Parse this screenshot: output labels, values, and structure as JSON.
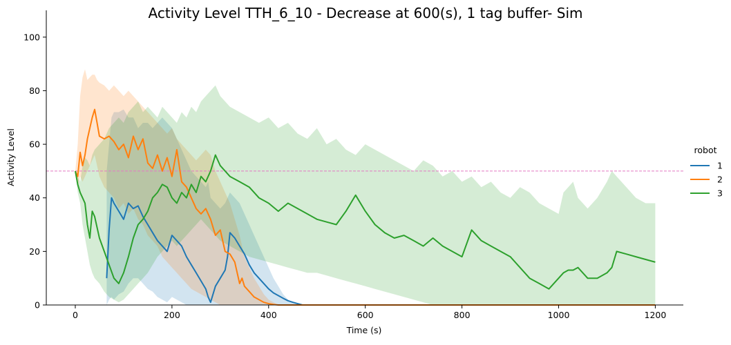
{
  "chart_data": {
    "type": "line",
    "title": "Activity Level TTH_6_10 - Decrease at 600(s), 1 tag buffer- Sim",
    "xlabel": "Time (s)",
    "ylabel": "Activity Level",
    "xlim": [
      -60,
      1258
    ],
    "ylim": [
      0,
      110
    ],
    "xticks": [
      0,
      200,
      400,
      600,
      800,
      1000,
      1200
    ],
    "yticks": [
      0,
      20,
      40,
      60,
      80,
      100
    ],
    "reference_line": {
      "y": 50,
      "style": "dashed",
      "color": "#e377c2"
    },
    "legend": {
      "title": "robot",
      "position": "right"
    },
    "series": [
      {
        "name": "1",
        "color": "#1f77b4",
        "x": [
          65,
          70,
          75,
          80,
          90,
          100,
          110,
          120,
          130,
          140,
          150,
          160,
          170,
          180,
          190,
          200,
          210,
          220,
          230,
          240,
          250,
          260,
          270,
          275,
          280,
          290,
          300,
          310,
          315,
          320,
          330,
          340,
          350,
          360,
          370,
          380,
          390,
          400,
          410,
          420,
          430,
          440,
          450,
          460,
          470
        ],
        "y": [
          10,
          28,
          40,
          38,
          35,
          32,
          38,
          36,
          37,
          33,
          30,
          27,
          24,
          22,
          20,
          26,
          24,
          22,
          18,
          15,
          12,
          9,
          6,
          3,
          1,
          7,
          10,
          13,
          18,
          27,
          25,
          22,
          19,
          15,
          12,
          10,
          8,
          6,
          4.5,
          3.5,
          2.5,
          1.6,
          1,
          0.5,
          0
        ],
        "upper": [
          50,
          60,
          70,
          72,
          72,
          73,
          70,
          70,
          66,
          68,
          68,
          66,
          68,
          70,
          68,
          66,
          62,
          58,
          54,
          50,
          48,
          46,
          44,
          46,
          40,
          38,
          36,
          38,
          40,
          42,
          40,
          38,
          34,
          30,
          26,
          22,
          18,
          14,
          10,
          7,
          4,
          2,
          1,
          0.5,
          0
        ],
        "lower": [
          0,
          2,
          3,
          2,
          4,
          5,
          8,
          10,
          10,
          8,
          6,
          5,
          3,
          2,
          1,
          3,
          2,
          1,
          0,
          0,
          0,
          0,
          0,
          0,
          0,
          0,
          0,
          0,
          0,
          0,
          0,
          0,
          0,
          0,
          0,
          0,
          0,
          0,
          0,
          0,
          0,
          0,
          0,
          0,
          0
        ]
      },
      {
        "name": "2",
        "color": "#ff7f0e",
        "x": [
          0,
          5,
          10,
          15,
          20,
          25,
          30,
          35,
          40,
          45,
          50,
          60,
          70,
          80,
          90,
          100,
          110,
          120,
          130,
          140,
          150,
          160,
          170,
          180,
          190,
          200,
          210,
          220,
          230,
          240,
          250,
          260,
          270,
          280,
          290,
          300,
          310,
          320,
          330,
          340,
          345,
          350,
          360,
          370,
          380,
          390,
          400,
          410,
          420,
          500,
          600,
          700,
          800,
          900,
          1000,
          1100,
          1200
        ],
        "y": [
          50,
          48,
          57,
          52,
          56,
          62,
          66,
          70,
          73,
          68,
          63,
          62,
          63,
          61,
          58,
          60,
          55,
          63,
          58,
          62,
          53,
          51,
          56,
          50,
          55,
          48,
          58,
          46,
          44,
          40,
          36,
          34,
          36,
          32,
          26,
          28,
          20,
          19,
          16,
          8,
          10,
          7,
          5,
          3,
          2,
          1,
          0.5,
          0.2,
          0,
          0,
          0,
          0,
          0,
          0,
          0,
          0,
          0
        ],
        "upper": [
          50,
          60,
          78,
          85,
          88,
          84,
          85,
          86,
          86,
          84,
          83,
          82,
          80,
          82,
          80,
          78,
          80,
          78,
          76,
          74,
          72,
          70,
          68,
          66,
          64,
          66,
          62,
          60,
          58,
          56,
          54,
          56,
          58,
          56,
          50,
          46,
          42,
          38,
          32,
          26,
          22,
          18,
          14,
          10,
          7,
          4,
          2,
          1,
          0,
          0,
          0,
          0,
          0,
          0,
          0,
          0,
          0
        ],
        "lower": [
          50,
          44,
          48,
          46,
          48,
          50,
          52,
          54,
          56,
          52,
          48,
          44,
          42,
          40,
          36,
          38,
          34,
          36,
          32,
          30,
          26,
          24,
          22,
          18,
          16,
          14,
          12,
          10,
          8,
          6,
          5,
          4,
          3,
          2,
          1,
          0,
          0,
          0,
          0,
          0,
          0,
          0,
          0,
          0,
          0,
          0,
          0,
          0,
          0,
          0,
          0,
          0,
          0,
          0,
          0,
          0,
          0
        ]
      },
      {
        "name": "3",
        "color": "#2ca02c",
        "x": [
          0,
          5,
          10,
          15,
          20,
          25,
          30,
          35,
          40,
          50,
          60,
          70,
          80,
          90,
          100,
          110,
          120,
          130,
          140,
          150,
          160,
          170,
          180,
          190,
          200,
          210,
          220,
          230,
          240,
          250,
          260,
          270,
          280,
          290,
          300,
          320,
          340,
          360,
          380,
          400,
          420,
          440,
          460,
          480,
          500,
          520,
          540,
          560,
          580,
          600,
          620,
          640,
          660,
          680,
          700,
          720,
          740,
          760,
          780,
          800,
          820,
          840,
          860,
          880,
          900,
          920,
          940,
          960,
          980,
          1000,
          1010,
          1020,
          1030,
          1040,
          1050,
          1060,
          1080,
          1100,
          1110,
          1120,
          1140,
          1160,
          1180,
          1200
        ],
        "y": [
          50,
          45,
          42,
          40,
          38,
          30,
          25,
          35,
          33,
          25,
          20,
          15,
          10,
          8,
          12,
          18,
          25,
          30,
          32,
          35,
          40,
          42,
          45,
          44,
          40,
          38,
          42,
          40,
          45,
          42,
          48,
          46,
          50,
          56,
          52,
          48,
          46,
          44,
          40,
          38,
          35,
          38,
          36,
          34,
          32,
          31,
          30,
          35,
          41,
          35,
          30,
          27,
          25,
          26,
          24,
          22,
          25,
          22,
          20,
          18,
          28,
          24,
          22,
          20,
          18,
          14,
          10,
          8,
          6,
          10,
          12,
          13,
          13,
          14,
          12,
          10,
          10,
          12,
          14,
          20,
          19,
          18,
          17,
          16
        ],
        "upper": [
          50,
          48,
          46,
          52,
          55,
          54,
          52,
          56,
          58,
          60,
          62,
          66,
          68,
          70,
          68,
          72,
          74,
          76,
          72,
          74,
          72,
          70,
          74,
          72,
          70,
          68,
          72,
          70,
          74,
          72,
          76,
          78,
          80,
          82,
          78,
          74,
          72,
          70,
          68,
          70,
          66,
          68,
          64,
          62,
          66,
          60,
          62,
          58,
          56,
          60,
          58,
          56,
          54,
          52,
          50,
          54,
          52,
          48,
          50,
          46,
          48,
          44,
          46,
          42,
          40,
          44,
          42,
          38,
          36,
          34,
          42,
          44,
          46,
          40,
          38,
          36,
          40,
          46,
          50,
          48,
          44,
          40,
          38,
          38
        ],
        "lower": [
          50,
          42,
          38,
          30,
          25,
          20,
          15,
          12,
          10,
          8,
          5,
          3,
          2,
          1,
          2,
          4,
          6,
          8,
          10,
          12,
          15,
          18,
          20,
          22,
          24,
          22,
          24,
          26,
          28,
          30,
          32,
          30,
          28,
          26,
          24,
          22,
          20,
          18,
          17,
          16,
          15,
          14,
          13,
          12,
          12,
          11,
          10,
          9,
          8,
          7,
          6,
          5,
          4,
          3,
          2,
          1,
          0,
          0,
          0,
          0,
          0,
          0,
          0,
          0,
          0,
          0,
          0,
          0,
          0,
          0,
          0,
          0,
          0,
          0,
          0,
          0,
          0,
          0,
          0,
          0,
          0,
          0,
          0,
          0
        ]
      }
    ]
  }
}
